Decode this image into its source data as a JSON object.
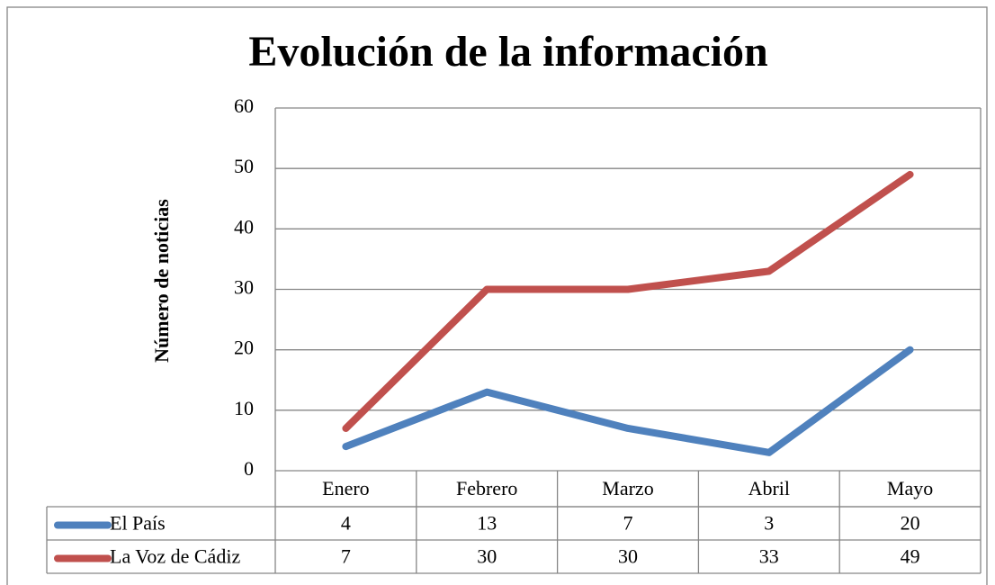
{
  "chart_data": {
    "type": "line",
    "title": "Evolución de la información",
    "y_label": "Número de noticias",
    "categories": [
      "Enero",
      "Febrero",
      "Marzo",
      "Abril",
      "Mayo"
    ],
    "series": [
      {
        "name": "El País",
        "color": "#4f81bd",
        "values": [
          4,
          13,
          7,
          3,
          20
        ]
      },
      {
        "name": "La Voz de Cádiz",
        "color": "#c0504d",
        "values": [
          7,
          30,
          30,
          33,
          49
        ]
      }
    ],
    "ylim": [
      0,
      60
    ],
    "yticks": [
      0,
      10,
      20,
      30,
      40,
      50,
      60
    ],
    "grid": true,
    "data_table": true
  }
}
